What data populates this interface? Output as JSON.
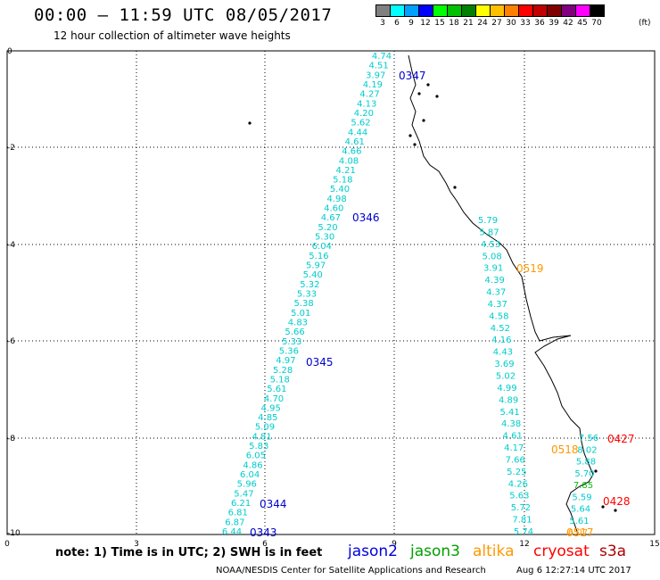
{
  "header": {
    "title": "00:00 – 11:59 UTC 08/05/2017",
    "subtitle": "12 hour collection of altimeter wave heights",
    "unit": "(ft)"
  },
  "color_scale": [
    {
      "label": "3",
      "color": "#808080"
    },
    {
      "label": "6",
      "color": "#00ffff"
    },
    {
      "label": "9",
      "color": "#00a0ff"
    },
    {
      "label": "12",
      "color": "#0000ff"
    },
    {
      "label": "15",
      "color": "#00ff00"
    },
    {
      "label": "18",
      "color": "#00c000"
    },
    {
      "label": "21",
      "color": "#008000"
    },
    {
      "label": "24",
      "color": "#ffff00"
    },
    {
      "label": "27",
      "color": "#ffc000"
    },
    {
      "label": "30",
      "color": "#ff8000"
    },
    {
      "label": "33",
      "color": "#ff0000"
    },
    {
      "label": "36",
      "color": "#c00000"
    },
    {
      "label": "39",
      "color": "#800000"
    },
    {
      "label": "42",
      "color": "#800080"
    },
    {
      "label": "45",
      "color": "#ff00ff"
    },
    {
      "label": "70",
      "color": "#000000"
    }
  ],
  "axes": {
    "x_ticks": [
      "0",
      "3",
      "6",
      "9",
      "12",
      "15"
    ],
    "y_ticks": [
      "0",
      "-2",
      "-4",
      "-6",
      "-8",
      "-10"
    ]
  },
  "tracks": [
    {
      "satellite": "jason2",
      "color": "#00cccc",
      "values": [
        "4.74",
        "4.51",
        "3.97",
        "4.19",
        "4.27",
        "4.13",
        "4.20",
        "5.62",
        "4.44",
        "4.61",
        "4.66",
        "4.08",
        "4.21",
        "5.18",
        "5.40",
        "4.98",
        "4.60",
        "4.67",
        "5.20",
        "5.30",
        "6.04",
        "5.16",
        "5.97",
        "5.40",
        "5.32",
        "5.33",
        "5.38",
        "5.01",
        "4.83",
        "5.66",
        "5.33",
        "5.36",
        "4.97",
        "5.28",
        "5.18",
        "5.61",
        "4.70",
        "4.95",
        "4.85",
        "5.09",
        "4.81",
        "5.83",
        "6.05",
        "4.86",
        "6.04",
        "5.96",
        "5.47",
        "6.21",
        "6.81",
        "6.87",
        "6.44"
      ],
      "time_labels": [
        "0347",
        "0346",
        "0345",
        "0344",
        "0343"
      ]
    },
    {
      "satellite": "coastal",
      "color": "#00cccc",
      "values": [
        "5.79",
        "5.87",
        "4.53",
        "5.08",
        "3.91",
        "4.39",
        "4.37",
        "4.37",
        "4.58",
        "4.52",
        "4.16",
        "4.43",
        "3.69",
        "5.02",
        "4.99",
        "4.89",
        "5.41",
        "4.38",
        "4.61",
        "4.17",
        "7.66",
        "5.25",
        "4.26",
        "5.63",
        "5.72",
        "7.81",
        "5.74"
      ]
    },
    {
      "satellite": "near-shore",
      "values": [
        "7.56",
        "8.02",
        "5.88",
        "5.70",
        "7.85",
        "5.59",
        "5.64",
        "5.61",
        "6.07"
      ]
    }
  ],
  "orange_labels": [
    "0519",
    "0518",
    "0517"
  ],
  "red_labels": [
    "0427",
    "0428"
  ],
  "footer": {
    "note": "note: 1) Time is in UTC; 2) SWH is in feet",
    "satellites": [
      {
        "name": "jason2",
        "color": "#0000dd"
      },
      {
        "name": "jason3",
        "color": "#00a000"
      },
      {
        "name": "altika",
        "color": "#ff9900"
      },
      {
        "name": "cryosat",
        "color": "#ff0000"
      },
      {
        "name": "s3a",
        "color": "#aa0000"
      }
    ],
    "org": "NOAA/NESDIS Center for Satellite Applications and Research",
    "timestamp": "Aug  6 12:27:14 UTC 2017"
  }
}
